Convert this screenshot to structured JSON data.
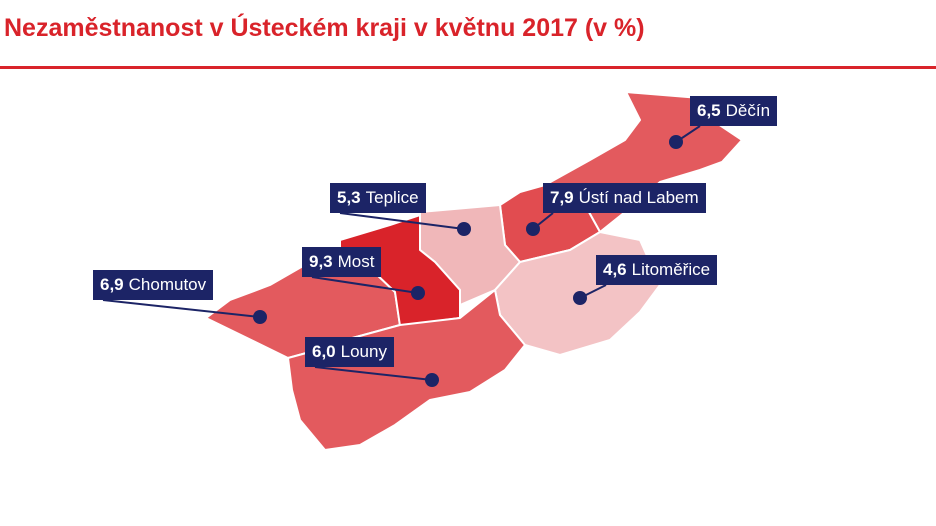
{
  "title": "Nezaměstnanost v Ústeckém kraji v květnu 2017 (v %)",
  "colors": {
    "brand_red": "#d9232a",
    "label_bg": "#1c2466",
    "district_high": "#dc3d42",
    "district_mid": "#e35a5e",
    "district_low": "#f0b7b9"
  },
  "districts": [
    {
      "id": "decin",
      "name": "Děčín",
      "value": "6,5"
    },
    {
      "id": "usti",
      "name": "Ústí nad Labem",
      "value": "7,9"
    },
    {
      "id": "teplice",
      "name": "Teplice",
      "value": "5,3"
    },
    {
      "id": "most",
      "name": "Most",
      "value": "9,3"
    },
    {
      "id": "chomutov",
      "name": "Chomutov",
      "value": "6,9"
    },
    {
      "id": "litomerice",
      "name": "Litoměřice",
      "value": "4,6"
    },
    {
      "id": "louny",
      "name": "Louny",
      "value": "6,0"
    }
  ]
}
